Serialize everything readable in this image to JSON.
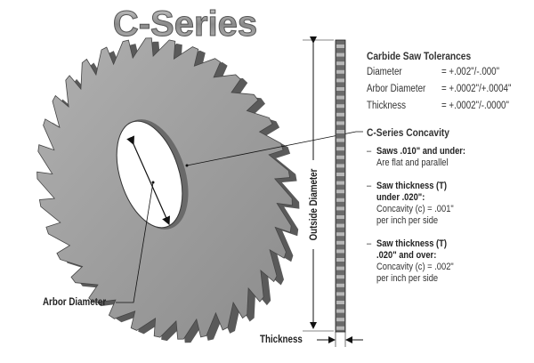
{
  "title": "C-Series",
  "tolerances": {
    "heading": "Carbide Saw Tolerances",
    "rows": [
      {
        "label": "Diameter",
        "value": "= +.002\"/-.000\""
      },
      {
        "label": "Arbor Diameter",
        "value": "= +.0002\"/+.0004\""
      },
      {
        "label": "Thickness",
        "value": "= +.0002\"/-.0000\""
      }
    ]
  },
  "concavity": {
    "heading": "C-Series Concavity",
    "items": [
      {
        "bold": "Saws .010\" and under:",
        "text": [
          "Are flat and parallel"
        ]
      },
      {
        "bold": "Saw thickness (T)",
        "bold2": "under .020\":",
        "text": [
          "Concavity (c) = .001\"",
          "per inch per side"
        ]
      },
      {
        "bold": "Saw thickness (T)",
        "bold2": ".020\" and over:",
        "text": [
          "Concavity (c) = .002\"",
          "per inch per side"
        ]
      }
    ]
  },
  "labels": {
    "arbor_diameter": "Arbor Diameter",
    "outside_diameter": "Outside Diameter",
    "thickness": "Thickness"
  },
  "colors": {
    "saw_face": "#9a9a9a",
    "saw_edge": "#5a5a5a",
    "text": "#222222"
  }
}
